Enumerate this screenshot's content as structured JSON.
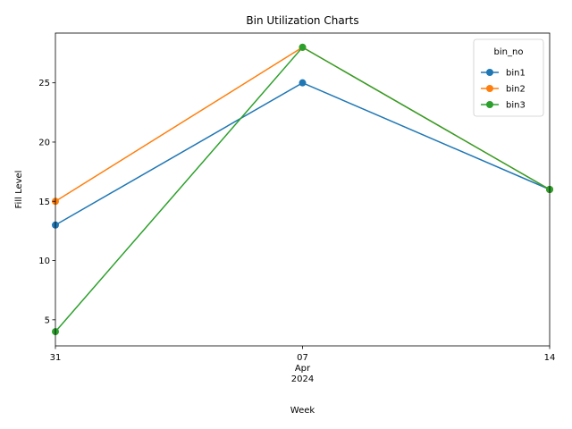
{
  "chart_data": {
    "type": "line",
    "title": "Bin Utilization Charts",
    "xlabel": "Week",
    "ylabel": "Fill Level",
    "x": [
      "2024-03-31",
      "2024-04-07",
      "2024-04-14"
    ],
    "x_tick_labels": [
      {
        "day": "31",
        "month": "",
        "year": ""
      },
      {
        "day": "07",
        "month": "Apr",
        "year": "2024"
      },
      {
        "day": "14",
        "month": "",
        "year": ""
      }
    ],
    "y_ticks": [
      5,
      10,
      15,
      20,
      25
    ],
    "ylim": [
      2.8,
      29.2
    ],
    "grid": false,
    "legend": {
      "title": "bin_no",
      "placement": "top-right"
    },
    "series": [
      {
        "name": "bin1",
        "color": "#1f77b4",
        "values": [
          13,
          25,
          16
        ]
      },
      {
        "name": "bin2",
        "color": "#ff7f0e",
        "values": [
          15,
          28,
          16
        ]
      },
      {
        "name": "bin3",
        "color": "#2ca02c",
        "values": [
          4,
          28,
          16
        ]
      }
    ]
  }
}
